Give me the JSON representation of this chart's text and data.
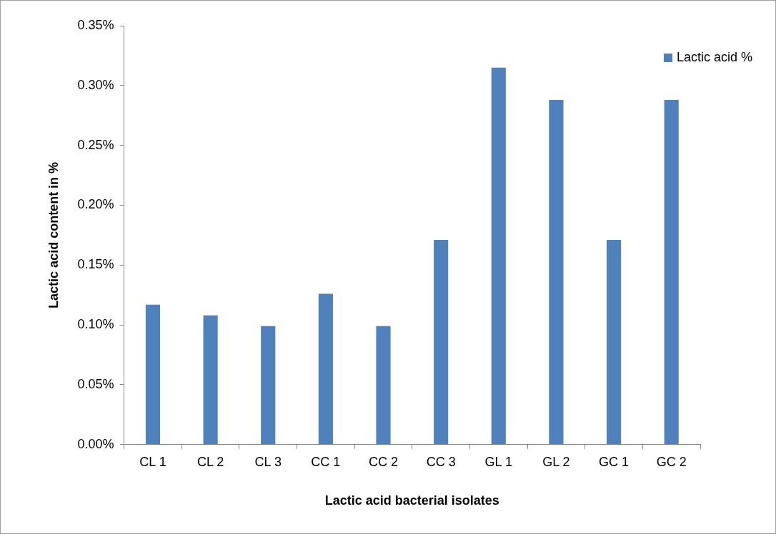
{
  "chart_data": {
    "type": "bar",
    "xlabel": "Lactic acid bacterial isolates",
    "ylabel": "Lactic acid content in %",
    "categories": [
      "CL 1",
      "CL 2",
      "CL 3",
      "CC 1",
      "CC 2",
      "CC 3",
      "GL 1",
      "GL 2",
      "GC 1",
      "GC 2"
    ],
    "series": [
      {
        "name": "Lactic acid %",
        "color": "#4f81bd",
        "values": [
          0.117,
          0.108,
          0.099,
          0.126,
          0.099,
          0.171,
          0.315,
          0.288,
          0.171,
          0.288
        ]
      }
    ],
    "ylim": [
      0,
      0.35
    ],
    "yticks": [
      {
        "value": 0,
        "label": "0.00%"
      },
      {
        "value": 0.05,
        "label": "0.05%"
      },
      {
        "value": 0.1,
        "label": "0.10%"
      },
      {
        "value": 0.15,
        "label": "0.15%"
      },
      {
        "value": 0.2,
        "label": "0.20%"
      },
      {
        "value": 0.25,
        "label": "0.25%"
      },
      {
        "value": 0.3,
        "label": "0.30%"
      },
      {
        "value": 0.35,
        "label": "0.35%"
      }
    ],
    "grid": false,
    "legend": "top right"
  }
}
